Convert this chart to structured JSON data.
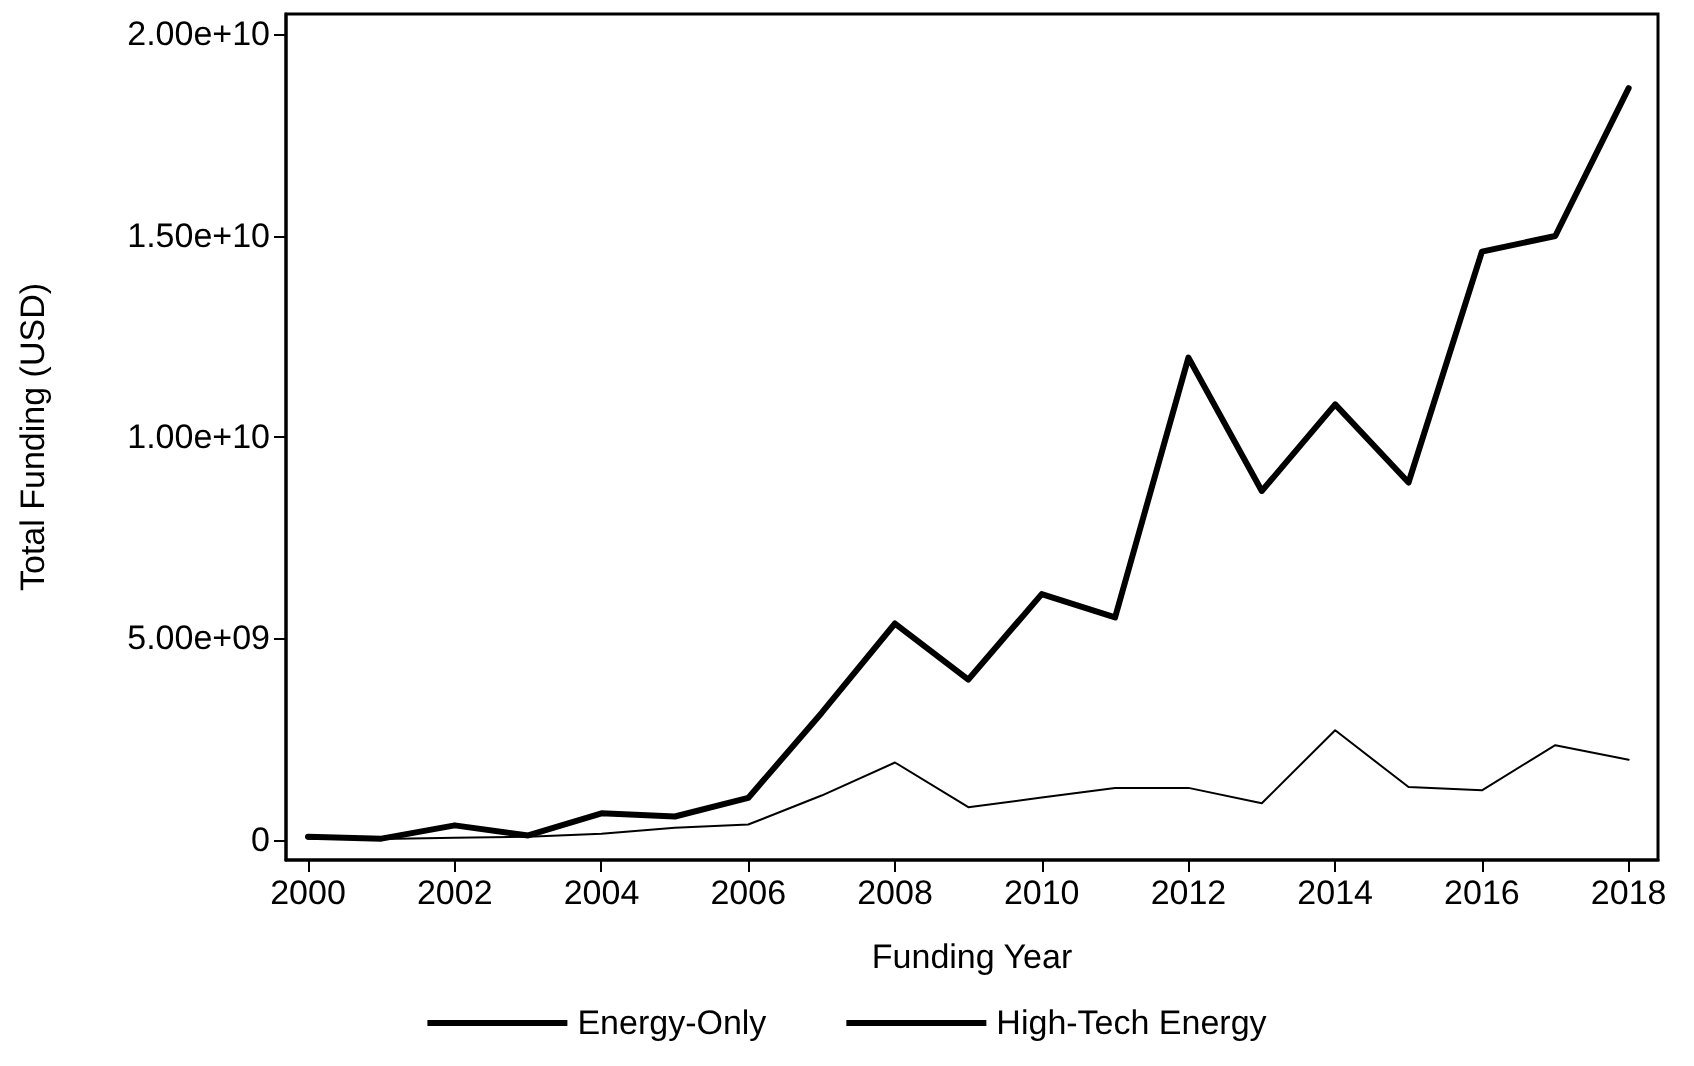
{
  "chart_data": {
    "type": "line",
    "xlabel": "Funding Year",
    "ylabel": "Total Funding (USD)",
    "x": [
      2000,
      2001,
      2002,
      2003,
      2004,
      2005,
      2006,
      2007,
      2008,
      2009,
      2010,
      2011,
      2012,
      2013,
      2014,
      2015,
      2016,
      2017,
      2018
    ],
    "series": [
      {
        "name": "Energy-Only",
        "color": "#000000",
        "values": [
          80000000,
          30000000,
          360000000,
          110000000,
          660000000,
          580000000,
          1040000000,
          3150000000,
          5370000000,
          3980000000,
          6100000000,
          5520000000,
          11970000000,
          8660000000,
          10810000000,
          8870000000,
          14600000000,
          14990000000,
          18660000000
        ]
      },
      {
        "name": "High-Tech Energy",
        "color": "#000000",
        "values": [
          30000000,
          20000000,
          50000000,
          80000000,
          150000000,
          300000000,
          380000000,
          1100000000,
          1920000000,
          810000000,
          1050000000,
          1290000000,
          1290000000,
          910000000,
          2720000000,
          1310000000,
          1230000000,
          2350000000,
          1990000000
        ]
      }
    ],
    "xlim": [
      1999.7,
      2018.4
    ],
    "xticks": [
      2000,
      2002,
      2004,
      2006,
      2008,
      2010,
      2012,
      2014,
      2016,
      2018
    ],
    "ylim": [
      -500000000,
      20500000000
    ],
    "yticks": [
      {
        "value": 0,
        "label": "0"
      },
      {
        "value": 5000000000,
        "label": "5.00e+09"
      },
      {
        "value": 10000000000,
        "label": "1.00e+10"
      },
      {
        "value": 15000000000,
        "label": "1.50e+10"
      },
      {
        "value": 20000000000,
        "label": "2.00e+10"
      }
    ],
    "grid": false,
    "legend": "bottom",
    "marker": "none",
    "line_style": "solid"
  }
}
